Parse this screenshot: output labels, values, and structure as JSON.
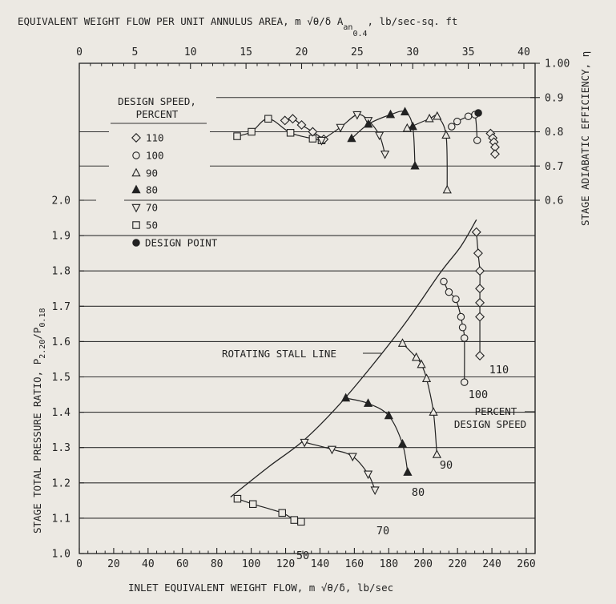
{
  "chart_data": {
    "type": "scatter",
    "top_axis": {
      "label_main": "EQUIVALENT WEIGHT FLOW PER UNIT ANNULUS AREA, m √θ/δ A",
      "label_sub": "an",
      "label_sub2": "0.4",
      "label_tail": ", lb/sec-sq. ft",
      "range": [
        0,
        40
      ],
      "ticks": [
        "0",
        "5",
        "10",
        "15",
        "20",
        "25",
        "30",
        "35",
        "40"
      ]
    },
    "x_axis": {
      "label": "INLET EQUIVALENT WEIGHT FLOW, m √θ/δ, lb/sec",
      "range": [
        0,
        260
      ],
      "ticks": [
        "0",
        "20",
        "40",
        "60",
        "80",
        "100",
        "120",
        "140",
        "160",
        "180",
        "200",
        "220",
        "240",
        "260"
      ]
    },
    "y_left": {
      "label_main": "STAGE TOTAL PRESSURE RATIO, P",
      "label_sub1": "2.20",
      "label_mid": "/P",
      "label_sub2": "0.18",
      "range": [
        1.0,
        2.0
      ],
      "ticks": [
        "1.0",
        "1.1",
        "1.2",
        "1.3",
        "1.4",
        "1.5",
        "1.6",
        "1.7",
        "1.8",
        "1.9",
        "2.0"
      ]
    },
    "y_right": {
      "label": "STAGE ADIABATIC EFFICIENCY, η",
      "range": [
        0.6,
        1.0
      ],
      "ticks": [
        "0.6",
        "0.7",
        "0.8",
        "0.9",
        "1.00"
      ]
    },
    "legend": {
      "title_line1": "DESIGN SPEED,",
      "title_line2": "PERCENT",
      "placement": "top-left",
      "entries": [
        {
          "marker": "diamond",
          "label": "110"
        },
        {
          "marker": "circle",
          "label": "100"
        },
        {
          "marker": "triangle-up",
          "label": "90"
        },
        {
          "marker": "triangle-up-filled",
          "label": "80"
        },
        {
          "marker": "triangle-down",
          "label": "70"
        },
        {
          "marker": "square",
          "label": "50"
        },
        {
          "marker": "design-point",
          "label": "DESIGN POINT"
        }
      ]
    },
    "annotations": {
      "stall_line": "ROTATING STALL LINE",
      "percent_line1": "PERCENT",
      "percent_line2": "DESIGN SPEED"
    },
    "stall_line": [
      [
        88,
        1.16
      ],
      [
        110,
        1.245
      ],
      [
        130,
        1.318
      ],
      [
        150,
        1.415
      ],
      [
        170,
        1.53
      ],
      [
        190,
        1.655
      ],
      [
        210,
        1.795
      ],
      [
        222,
        1.87
      ],
      [
        231,
        1.945
      ]
    ],
    "pressure_series": [
      {
        "speed": "110",
        "marker": "diamond",
        "label": "110",
        "points": [
          [
            231,
            1.91
          ],
          [
            232,
            1.85
          ],
          [
            233,
            1.8
          ],
          [
            233,
            1.75
          ],
          [
            233,
            1.71
          ],
          [
            233,
            1.67
          ],
          [
            233,
            1.56
          ]
        ]
      },
      {
        "speed": "100",
        "marker": "circle",
        "label": "100",
        "points": [
          [
            212,
            1.77
          ],
          [
            215,
            1.74
          ],
          [
            219,
            1.72
          ],
          [
            222,
            1.67
          ],
          [
            223,
            1.64
          ],
          [
            224,
            1.61
          ],
          [
            224,
            1.485
          ]
        ]
      },
      {
        "speed": "90",
        "marker": "triangle-up",
        "label": "90",
        "points": [
          [
            188,
            1.595
          ],
          [
            196,
            1.555
          ],
          [
            199,
            1.535
          ],
          [
            202,
            1.495
          ],
          [
            206,
            1.4
          ],
          [
            208,
            1.28
          ]
        ]
      },
      {
        "speed": "80",
        "marker": "triangle-up-filled",
        "label": "80",
        "points": [
          [
            155,
            1.44
          ],
          [
            168,
            1.425
          ],
          [
            180,
            1.39
          ],
          [
            188,
            1.31
          ],
          [
            191,
            1.23
          ]
        ]
      },
      {
        "speed": "70",
        "marker": "triangle-down",
        "label": "70",
        "points": [
          [
            131,
            1.315
          ],
          [
            147,
            1.295
          ],
          [
            159,
            1.275
          ],
          [
            168,
            1.225
          ],
          [
            172,
            1.18
          ]
        ]
      },
      {
        "speed": "50",
        "marker": "square",
        "label": "50",
        "points": [
          [
            92,
            1.155
          ],
          [
            101,
            1.14
          ],
          [
            118,
            1.115
          ],
          [
            125,
            1.095
          ],
          [
            129,
            1.09
          ]
        ]
      }
    ],
    "efficiency_series": [
      {
        "speed": "50",
        "marker": "square",
        "points": [
          [
            14.2,
            0.787
          ],
          [
            15.5,
            0.8
          ],
          [
            17.0,
            0.838
          ],
          [
            19.0,
            0.797
          ],
          [
            21.0,
            0.78
          ],
          [
            21.8,
            0.775
          ]
        ]
      },
      {
        "speed": "110",
        "marker": "diamond",
        "points": [
          [
            18.5,
            0.833
          ],
          [
            19.2,
            0.838
          ],
          [
            20.0,
            0.82
          ],
          [
            21.0,
            0.8
          ],
          [
            22.0,
            0.778
          ]
        ]
      },
      {
        "speed": "70",
        "marker": "triangle-down",
        "points": [
          [
            21.8,
            0.775
          ],
          [
            23.5,
            0.813
          ],
          [
            25.0,
            0.85
          ],
          [
            26.0,
            0.833
          ],
          [
            27.0,
            0.79
          ],
          [
            27.5,
            0.735
          ]
        ]
      },
      {
        "speed": "80",
        "marker": "triangle-up-filled",
        "points": [
          [
            24.5,
            0.78
          ],
          [
            26.0,
            0.822
          ],
          [
            28.0,
            0.85
          ],
          [
            29.3,
            0.858
          ],
          [
            30.0,
            0.815
          ],
          [
            30.2,
            0.7
          ]
        ]
      },
      {
        "speed": "90",
        "marker": "triangle-up",
        "points": [
          [
            29.5,
            0.81
          ],
          [
            31.5,
            0.838
          ],
          [
            32.2,
            0.845
          ],
          [
            33.0,
            0.79
          ],
          [
            33.1,
            0.63
          ]
        ]
      },
      {
        "speed": "100",
        "marker": "circle",
        "points": [
          [
            33.5,
            0.815
          ],
          [
            34.0,
            0.83
          ],
          [
            35.0,
            0.845
          ],
          [
            35.6,
            0.85
          ],
          [
            35.8,
            0.775
          ]
        ]
      },
      {
        "speed": "110",
        "marker": "diamond",
        "points": [
          [
            37.0,
            0.795
          ],
          [
            37.2,
            0.782
          ],
          [
            37.3,
            0.77
          ],
          [
            37.4,
            0.755
          ],
          [
            37.4,
            0.735
          ]
        ]
      }
    ],
    "design_point": {
      "x": 35.9,
      "y": 0.855
    }
  }
}
